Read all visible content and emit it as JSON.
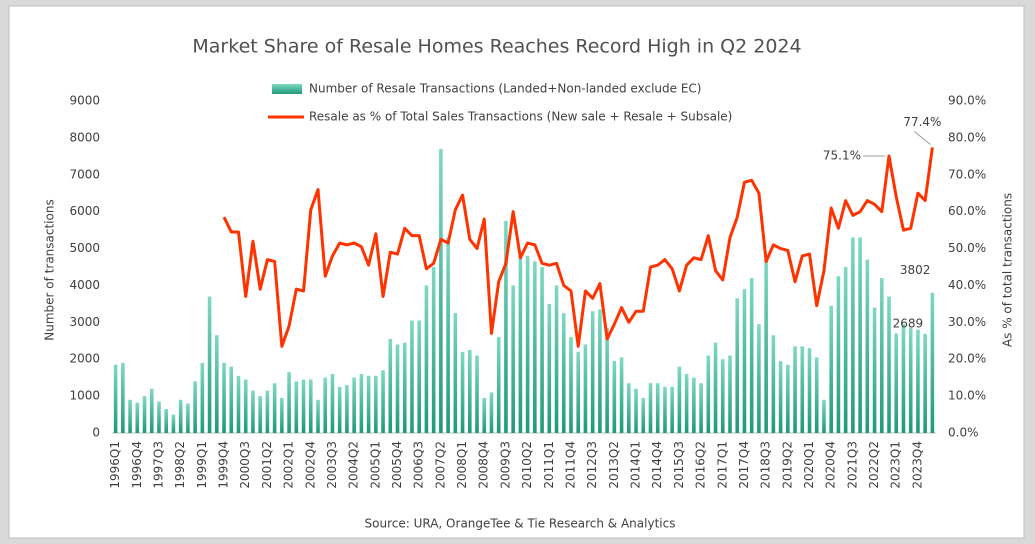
{
  "chart_data": {
    "type": "bar-line",
    "title": "Market Share of Resale Homes Reaches Record High in Q2 2024",
    "source": "Source: URA, OrangeTee & Tie Research & Analytics",
    "ylabel": "Number of transactions",
    "y2label": "As % of total transactions",
    "categories": [
      "1996Q1",
      null,
      null,
      "1996Q4",
      null,
      null,
      "1997Q3",
      null,
      null,
      "1998Q2",
      null,
      null,
      "1999Q1",
      null,
      null,
      "1999Q4",
      null,
      null,
      "2000Q3",
      null,
      null,
      "2001Q2",
      null,
      null,
      "2002Q1",
      null,
      null,
      "2002Q4",
      null,
      null,
      "2003Q3",
      null,
      null,
      "2004Q2",
      null,
      null,
      "2005Q1",
      null,
      null,
      "2005Q4",
      null,
      null,
      "2006Q3",
      null,
      null,
      "2007Q2",
      null,
      null,
      "2008Q1",
      null,
      null,
      "2008Q4",
      null,
      null,
      "2009Q3",
      null,
      null,
      "2010Q2",
      null,
      null,
      "2011Q1",
      null,
      null,
      "2011Q4",
      null,
      null,
      "2012Q3",
      null,
      null,
      "2013Q2",
      null,
      null,
      "2014Q1",
      null,
      null,
      "2014Q4",
      null,
      null,
      "2015Q3",
      null,
      null,
      "2016Q2",
      null,
      null,
      "2017Q1",
      null,
      null,
      "2017Q4",
      null,
      null,
      "2018Q3",
      null,
      null,
      "2019Q2",
      null,
      null,
      "2020Q1",
      null,
      null,
      "2020Q4",
      null,
      null,
      "2021Q3",
      null,
      null,
      "2022Q2",
      null,
      null,
      "2023Q1",
      null,
      null,
      "2023Q4",
      null,
      null
    ],
    "series": [
      {
        "name": "Number of Resale Transactions (Landed+Non-landed exclude EC)",
        "type": "bar",
        "color": "#3dbb9c",
        "values": [
          1850,
          1900,
          900,
          820,
          1000,
          1200,
          850,
          650,
          500,
          900,
          800,
          1400,
          1900,
          3700,
          2650,
          1900,
          1800,
          1550,
          1450,
          1150,
          1000,
          1150,
          1350,
          950,
          1650,
          1400,
          1450,
          1450,
          900,
          1500,
          1600,
          1250,
          1300,
          1500,
          1600,
          1550,
          1550,
          1700,
          2550,
          2400,
          2450,
          3050,
          3050,
          4000,
          4500,
          7700,
          5300,
          3250,
          2200,
          2250,
          2100,
          950,
          1100,
          2600,
          5750,
          4000,
          4900,
          4800,
          4650,
          4500,
          3500,
          4000,
          3250,
          2600,
          2200,
          2400,
          3300,
          3350,
          2850,
          1950,
          2050,
          1350,
          1200,
          950,
          1350,
          1350,
          1250,
          1250,
          1800,
          1600,
          1500,
          1350,
          2100,
          2450,
          2000,
          2100,
          3650,
          3900,
          4200,
          2950,
          4700,
          2650,
          1950,
          1850,
          2350,
          2350,
          2300,
          2050,
          900,
          3450,
          4250,
          4500,
          5300,
          5300,
          4700,
          3400,
          4200,
          3700,
          2700,
          2950,
          2850,
          2800,
          2689,
          3802
        ],
        "value_labels": [
          null,
          null,
          null,
          null,
          null,
          null,
          null,
          null,
          null,
          null,
          null,
          null,
          null,
          null,
          null,
          null,
          null,
          null,
          null,
          null,
          null,
          null,
          null,
          null,
          null,
          null,
          null,
          null,
          null,
          null,
          null,
          null,
          null,
          null,
          null,
          null,
          null,
          null,
          null,
          null,
          null,
          null,
          null,
          null,
          null,
          null,
          null,
          null,
          null,
          null,
          null,
          null,
          null,
          null,
          null,
          null,
          null,
          null,
          null,
          null,
          null,
          null,
          null,
          null,
          null,
          null,
          null,
          null,
          null,
          null,
          null,
          null,
          null,
          null,
          null,
          null,
          null,
          null,
          null,
          null,
          null,
          null,
          null,
          null,
          null,
          null,
          null,
          null,
          null,
          null,
          null,
          null,
          null,
          null,
          null,
          null,
          null,
          null,
          null,
          null,
          null,
          null,
          null,
          null,
          null,
          null,
          null,
          null,
          null,
          null,
          null,
          null,
          "2689",
          "3802"
        ]
      },
      {
        "name": "Resale as % of Total Sales Transactions (New sale + Resale + Subsale)",
        "type": "line",
        "axis": "y2",
        "color": "#ff3300",
        "values": [
          null,
          null,
          null,
          null,
          null,
          null,
          null,
          null,
          null,
          null,
          null,
          null,
          null,
          null,
          null,
          58.5,
          54.5,
          54.5,
          37,
          52,
          39,
          47,
          46.5,
          23.5,
          29,
          39,
          38.5,
          60.5,
          66,
          42.5,
          48,
          51.5,
          51,
          51.5,
          50.5,
          45.5,
          54,
          37,
          49,
          48.5,
          55.5,
          53.5,
          53.5,
          44.5,
          46,
          52.5,
          51.5,
          60.5,
          64.5,
          52.5,
          50,
          58,
          27,
          41,
          46,
          60,
          47.5,
          51.5,
          51,
          46,
          45.5,
          46,
          40,
          38.5,
          23.5,
          38.5,
          36.5,
          40.5,
          25.5,
          29.5,
          34,
          30,
          33,
          33,
          45,
          45.5,
          47,
          44.5,
          38.5,
          45.5,
          47.5,
          47,
          53.5,
          44,
          41.5,
          53,
          58.5,
          68,
          68.5,
          65,
          46.5,
          51,
          50,
          49.5,
          41,
          48,
          48.5,
          34.5,
          44,
          61,
          55.5,
          63,
          59,
          60,
          63,
          62,
          60,
          75.1,
          64,
          55,
          55.5,
          65,
          63,
          77.4
        ],
        "value_labels": [
          null,
          null,
          null,
          null,
          null,
          null,
          null,
          null,
          null,
          null,
          null,
          null,
          null,
          null,
          null,
          null,
          null,
          null,
          null,
          null,
          null,
          null,
          null,
          null,
          null,
          null,
          null,
          null,
          null,
          null,
          null,
          null,
          null,
          null,
          null,
          null,
          null,
          null,
          null,
          null,
          null,
          null,
          null,
          null,
          null,
          null,
          null,
          null,
          null,
          null,
          null,
          null,
          null,
          null,
          null,
          null,
          null,
          null,
          null,
          null,
          null,
          null,
          null,
          null,
          null,
          null,
          null,
          null,
          null,
          null,
          null,
          null,
          null,
          null,
          null,
          null,
          null,
          null,
          null,
          null,
          null,
          null,
          null,
          null,
          null,
          null,
          null,
          null,
          null,
          null,
          null,
          null,
          null,
          null,
          null,
          null,
          null,
          null,
          null,
          null,
          null,
          null,
          null,
          null,
          null,
          null,
          null,
          "75.1%",
          null,
          null,
          null,
          null,
          null,
          "77.4%"
        ]
      }
    ],
    "ylim": [
      0,
      9000
    ],
    "yticks": [
      0,
      1000,
      2000,
      3000,
      4000,
      5000,
      6000,
      7000,
      8000,
      9000
    ],
    "y2lim": [
      0,
      90
    ],
    "y2ticks": [
      {
        "value": 0,
        "label": "0.0%"
      },
      {
        "value": 10,
        "label": "10.0%"
      },
      {
        "value": 20,
        "label": "20.0%"
      },
      {
        "value": 30,
        "label": "30.0%"
      },
      {
        "value": 40,
        "label": "40.0%"
      },
      {
        "value": 50,
        "label": "50.0%"
      },
      {
        "value": 60,
        "label": "60.0%"
      },
      {
        "value": 70,
        "label": "70.0%"
      },
      {
        "value": 80,
        "label": "80.0%"
      },
      {
        "value": 90,
        "label": "90.0%"
      }
    ],
    "grid": false,
    "legend": "top"
  }
}
